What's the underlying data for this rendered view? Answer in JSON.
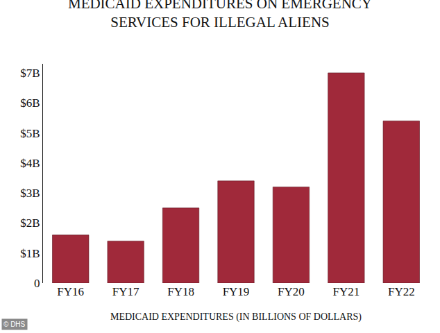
{
  "chart_data": {
    "type": "bar",
    "title": "MEDICAID EXPENDITURES ON EMERGENCY SERVICES FOR ILLEGAL ALIENS",
    "x_label": "MEDICAID EXPENDITURES (IN BILLIONS OF DOLLARS)",
    "annotations": [
      "© DHS"
    ],
    "categories": [
      "FY16",
      "FY17",
      "FY18",
      "FY19",
      "FY20",
      "FY21",
      "FY22"
    ],
    "values": [
      1.6,
      1.4,
      2.5,
      3.4,
      3.2,
      7.0,
      5.4
    ],
    "color": "#a0293a",
    "ylim": [
      0,
      7.3
    ],
    "yticks": [
      0,
      {
        "value": 1,
        "label": "$1B"
      },
      {
        "value": 2,
        "label": "$2B"
      },
      {
        "value": 3,
        "label": "$3B"
      },
      {
        "value": 4,
        "label": "$4B"
      },
      {
        "value": 5,
        "label": "$5B"
      },
      {
        "value": 6,
        "label": "$6B"
      },
      {
        "value": 7,
        "label": "$7B"
      }
    ],
    "grid": false
  }
}
